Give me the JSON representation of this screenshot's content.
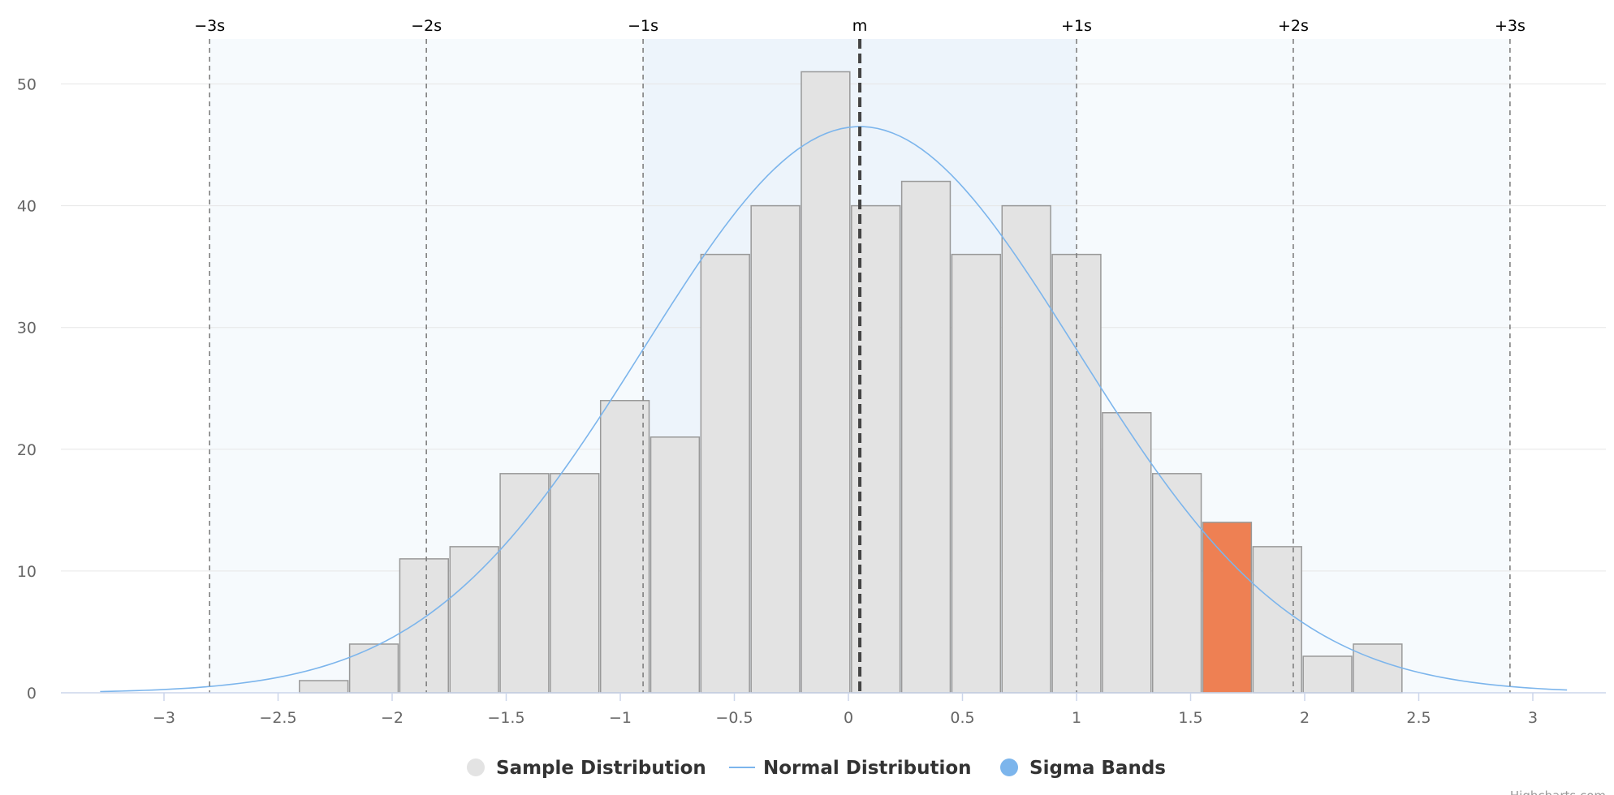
{
  "chart_data": {
    "type": "bar",
    "title": "",
    "xlabel": "",
    "ylabel": "",
    "xlim": [
      -3.3,
      3.3
    ],
    "ylim": [
      0,
      53
    ],
    "grid": true,
    "legend_position": "bottom-center",
    "x_ticks": [
      -3,
      -2.5,
      -2,
      -1.5,
      -1,
      -0.5,
      0,
      0.5,
      1,
      1.5,
      2,
      2.5,
      3
    ],
    "x_tick_labels": [
      "−3",
      "−2.5",
      "−2",
      "−1.5",
      "−1",
      "−0.5",
      "0",
      "0.5",
      "1",
      "1.5",
      "2",
      "2.5",
      "3"
    ],
    "y_ticks": [
      0,
      10,
      20,
      30,
      40,
      50
    ],
    "y_tick_labels": [
      "0",
      "10",
      "20",
      "30",
      "40",
      "50"
    ],
    "series": [
      {
        "name": "Sample Distribution",
        "kind": "histogram",
        "color": "#e3e3e3",
        "border_color": "#999999",
        "highlight_color": "#ee8053",
        "highlight_index": 18,
        "bin_width": 0.22,
        "bin_starts": [
          -2.41,
          -2.19,
          -1.97,
          -1.75,
          -1.53,
          -1.31,
          -1.09,
          -0.87,
          -0.65,
          -0.43,
          -0.21,
          0.01,
          0.23,
          0.45,
          0.67,
          0.89,
          1.11,
          1.33,
          1.55,
          1.77,
          1.99,
          2.21
        ],
        "values": [
          1,
          4,
          11,
          12,
          18,
          18,
          24,
          21,
          36,
          40,
          51,
          40,
          42,
          36,
          40,
          36,
          23,
          18,
          14,
          12,
          3,
          4
        ]
      },
      {
        "name": "Normal Distribution",
        "kind": "line",
        "color": "#7cb5ec",
        "mean": 0.05,
        "sd": 0.95,
        "peak": 46.5,
        "x_range": [
          -3.28,
          3.15
        ]
      },
      {
        "name": "Sigma Bands",
        "kind": "bands",
        "color": "#7cb5ec"
      }
    ],
    "sigma_lines": [
      {
        "label": "−3s",
        "x": -2.8
      },
      {
        "label": "−2s",
        "x": -1.85
      },
      {
        "label": "−1s",
        "x": -0.9
      },
      {
        "label": "m",
        "x": 0.05
      },
      {
        "label": "+1s",
        "x": 1.0
      },
      {
        "label": "+2s",
        "x": 1.95
      },
      {
        "label": "+3s",
        "x": 2.9
      }
    ],
    "band_fills": [
      "#f6fafd",
      "#edf4fb"
    ],
    "line_color": "#808080",
    "mean_line_color": "#444444"
  },
  "credits": "Highcharts.com"
}
